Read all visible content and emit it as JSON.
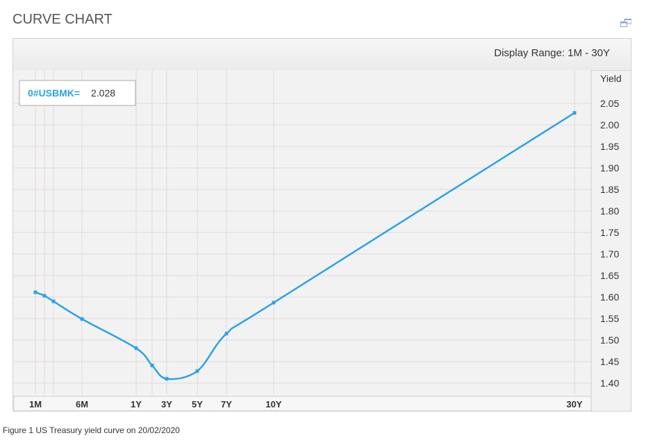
{
  "page": {
    "title": "CURVE CHART",
    "window_icon": "popout-window-icon"
  },
  "range": {
    "label": "Display Range: 1M - 30Y"
  },
  "legend": {
    "instrument": "0#USBMK=",
    "value": "2.028"
  },
  "caption": "Figure 1 US Treasury yield curve on 20/02/2020",
  "colors": {
    "line": "#2aa3e8",
    "instrument_text": "#2aa3e8",
    "grid": "#e2d8d8",
    "plot_bg": "#f2f2f2"
  },
  "chart_data": {
    "type": "line",
    "title": "",
    "xlabel": "",
    "ylabel": "Yield",
    "ylim": [
      1.38,
      2.07
    ],
    "yticks": [
      1.4,
      1.45,
      1.5,
      1.55,
      1.6,
      1.65,
      1.7,
      1.75,
      1.8,
      1.85,
      1.9,
      1.95,
      2.0,
      2.05
    ],
    "x_tick_labels": [
      "1M",
      "6M",
      "1Y",
      "3Y",
      "5Y",
      "7Y",
      "10Y",
      "30Y"
    ],
    "x_tick_years": [
      0.0833,
      0.5,
      1,
      3,
      5,
      7,
      10,
      30
    ],
    "grid": true,
    "series": [
      {
        "points": [
          {
            "tenor": "1M",
            "years": 0.0833,
            "yield": 1.611
          },
          {
            "tenor": "2M",
            "years": 0.1667,
            "yield": 1.603
          },
          {
            "tenor": "3M",
            "years": 0.25,
            "yield": 1.59
          },
          {
            "tenor": "6M",
            "years": 0.5,
            "yield": 1.549
          },
          {
            "tenor": "1Y",
            "years": 1,
            "yield": 1.481
          },
          {
            "tenor": "2Y",
            "years": 2,
            "yield": 1.441
          },
          {
            "tenor": "3Y",
            "years": 3,
            "yield": 1.41
          },
          {
            "tenor": "5Y",
            "years": 5,
            "yield": 1.428
          },
          {
            "tenor": "7Y",
            "years": 7,
            "yield": 1.515
          },
          {
            "tenor": "10Y",
            "years": 10,
            "yield": 1.587
          },
          {
            "tenor": "30Y",
            "years": 30,
            "yield": 2.028
          }
        ]
      }
    ]
  }
}
